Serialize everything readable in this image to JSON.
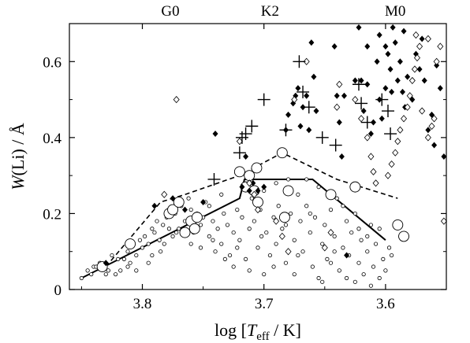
{
  "chart_data": {
    "type": "scatter",
    "title": "",
    "xlabel_parts": {
      "pre": "log [",
      "main": "T",
      "sub": "eff",
      "post": " / K]"
    },
    "ylabel_parts": {
      "main": "W",
      "post": "(Li) / Å"
    },
    "xlim": [
      3.86,
      3.55
    ],
    "ylim": [
      0,
      0.7
    ],
    "x_ticks": [
      3.8,
      3.7,
      3.6
    ],
    "x_tick_labels": [
      "3.8",
      "3.7",
      "3.6"
    ],
    "y_ticks": [
      0,
      0.2,
      0.4,
      0.6
    ],
    "y_tick_labels": [
      "0",
      "0.2",
      "0.4",
      "0.6"
    ],
    "top_axis": [
      {
        "label": "G0",
        "x": 3.777
      },
      {
        "label": "K2",
        "x": 3.695
      },
      {
        "label": "M0",
        "x": 3.592
      }
    ],
    "grid": false,
    "legend": "none",
    "series": [
      {
        "marker": "small-open-circle",
        "points": [
          [
            3.85,
            0.03
          ],
          [
            3.845,
            0.05
          ],
          [
            3.84,
            0.06
          ],
          [
            3.835,
            0.07
          ],
          [
            3.83,
            0.07
          ],
          [
            3.828,
            0.05
          ],
          [
            3.825,
            0.09
          ],
          [
            3.822,
            0.04
          ],
          [
            3.818,
            0.05
          ],
          [
            3.815,
            0.08
          ],
          [
            3.812,
            0.1
          ],
          [
            3.81,
            0.07
          ],
          [
            3.808,
            0.12
          ],
          [
            3.805,
            0.09
          ],
          [
            3.8,
            0.11
          ],
          [
            3.798,
            0.14
          ],
          [
            3.795,
            0.12
          ],
          [
            3.792,
            0.16
          ],
          [
            3.79,
            0.15
          ],
          [
            3.788,
            0.18
          ],
          [
            3.786,
            0.13
          ],
          [
            3.783,
            0.17
          ],
          [
            3.78,
            0.19
          ],
          [
            3.778,
            0.16
          ],
          [
            3.776,
            0.21
          ],
          [
            3.773,
            0.2
          ],
          [
            3.77,
            0.16
          ],
          [
            3.768,
            0.22
          ],
          [
            3.765,
            0.18
          ],
          [
            3.762,
            0.24
          ],
          [
            3.76,
            0.21
          ],
          [
            3.758,
            0.15
          ],
          [
            3.755,
            0.2
          ],
          [
            3.752,
            0.17
          ],
          [
            3.75,
            0.19
          ],
          [
            3.748,
            0.23
          ],
          [
            3.745,
            0.14
          ],
          [
            3.742,
            0.18
          ],
          [
            3.74,
            0.1
          ],
          [
            3.738,
            0.16
          ],
          [
            3.735,
            0.12
          ],
          [
            3.733,
            0.2
          ],
          [
            3.73,
            0.17
          ],
          [
            3.728,
            0.09
          ],
          [
            3.725,
            0.15
          ],
          [
            3.722,
            0.21
          ],
          [
            3.72,
            0.13
          ],
          [
            3.718,
            0.19
          ],
          [
            3.715,
            0.08
          ],
          [
            3.712,
            0.16
          ],
          [
            3.71,
            0.24
          ],
          [
            3.708,
            0.18
          ],
          [
            3.705,
            0.11
          ],
          [
            3.703,
            0.21
          ],
          [
            3.7,
            0.26
          ],
          [
            3.698,
            0.15
          ],
          [
            3.695,
            0.09
          ],
          [
            3.692,
            0.19
          ],
          [
            3.69,
            0.12
          ],
          [
            3.688,
            0.22
          ],
          [
            3.685,
            0.16
          ],
          [
            3.682,
            0.07
          ],
          [
            3.68,
            0.29
          ],
          [
            3.678,
            0.2
          ],
          [
            3.675,
            0.13
          ],
          [
            3.672,
            0.25
          ],
          [
            3.67,
            0.18
          ],
          [
            3.668,
            0.1
          ],
          [
            3.665,
            0.22
          ],
          [
            3.662,
            0.15
          ],
          [
            3.66,
            0.06
          ],
          [
            3.658,
            0.19
          ],
          [
            3.655,
            0.27
          ],
          [
            3.652,
            0.12
          ],
          [
            3.65,
            0.17
          ],
          [
            3.648,
            0.08
          ],
          [
            3.645,
            0.21
          ],
          [
            3.642,
            0.14
          ],
          [
            3.64,
            0.24
          ],
          [
            3.638,
            0.05
          ],
          [
            3.635,
            0.11
          ],
          [
            3.632,
            0.18
          ],
          [
            3.63,
            0.09
          ],
          [
            3.628,
            0.15
          ],
          [
            3.625,
            0.2
          ],
          [
            3.622,
            0.07
          ],
          [
            3.62,
            0.13
          ],
          [
            3.618,
            0.04
          ],
          [
            3.615,
            0.1
          ],
          [
            3.612,
            0.17
          ],
          [
            3.61,
            0.06
          ],
          [
            3.608,
            0.12
          ],
          [
            3.605,
            0.03
          ],
          [
            3.602,
            0.08
          ],
          [
            3.6,
            0.05
          ],
          [
            3.597,
            0.11
          ],
          [
            3.775,
            0.14
          ],
          [
            3.785,
            0.1
          ],
          [
            3.795,
            0.07
          ],
          [
            3.805,
            0.05
          ],
          [
            3.76,
            0.12
          ],
          [
            3.745,
            0.22
          ],
          [
            3.735,
            0.25
          ],
          [
            3.725,
            0.06
          ],
          [
            3.715,
            0.27
          ],
          [
            3.7,
            0.04
          ],
          [
            3.69,
            0.28
          ],
          [
            3.675,
            0.04
          ],
          [
            3.665,
            0.29
          ],
          [
            3.655,
            0.03
          ],
          [
            3.645,
            0.07
          ],
          [
            3.635,
            0.22
          ],
          [
            3.625,
            0.02
          ],
          [
            3.615,
            0.14
          ],
          [
            3.605,
            0.16
          ],
          [
            3.595,
            0.09
          ],
          [
            3.812,
            0.06
          ],
          [
            3.802,
            0.13
          ],
          [
            3.792,
            0.09
          ],
          [
            3.782,
            0.12
          ],
          [
            3.772,
            0.15
          ],
          [
            3.762,
            0.18
          ],
          [
            3.752,
            0.11
          ],
          [
            3.742,
            0.13
          ],
          [
            3.732,
            0.08
          ],
          [
            3.722,
            0.11
          ],
          [
            3.712,
            0.05
          ],
          [
            3.702,
            0.14
          ],
          [
            3.692,
            0.06
          ],
          [
            3.682,
            0.17
          ],
          [
            3.672,
            0.09
          ],
          [
            3.662,
            0.2
          ],
          [
            3.652,
            0.02
          ],
          [
            3.642,
            0.1
          ],
          [
            3.632,
            0.03
          ],
          [
            3.622,
            0.16
          ],
          [
            3.612,
            0.01
          ],
          [
            3.82,
            0.08
          ],
          [
            3.83,
            0.04
          ],
          [
            3.838,
            0.06
          ],
          [
            3.842,
            0.04
          ]
        ]
      },
      {
        "marker": "large-open-circle",
        "points": [
          [
            3.833,
            0.06
          ],
          [
            3.81,
            0.12
          ],
          [
            3.778,
            0.2
          ],
          [
            3.775,
            0.21
          ],
          [
            3.77,
            0.23
          ],
          [
            3.765,
            0.15
          ],
          [
            3.76,
            0.18
          ],
          [
            3.757,
            0.16
          ],
          [
            3.755,
            0.19
          ],
          [
            3.72,
            0.31
          ],
          [
            3.715,
            0.27
          ],
          [
            3.712,
            0.3
          ],
          [
            3.708,
            0.26
          ],
          [
            3.706,
            0.32
          ],
          [
            3.705,
            0.23
          ],
          [
            3.685,
            0.36
          ],
          [
            3.683,
            0.19
          ],
          [
            3.68,
            0.26
          ],
          [
            3.645,
            0.25
          ],
          [
            3.625,
            0.27
          ],
          [
            3.59,
            0.17
          ],
          [
            3.585,
            0.14
          ]
        ]
      },
      {
        "marker": "filled-diamond",
        "points": [
          [
            3.83,
            0.07
          ],
          [
            3.79,
            0.22
          ],
          [
            3.775,
            0.24
          ],
          [
            3.765,
            0.21
          ],
          [
            3.75,
            0.23
          ],
          [
            3.74,
            0.41
          ],
          [
            3.718,
            0.27
          ],
          [
            3.715,
            0.35
          ],
          [
            3.712,
            0.26
          ],
          [
            3.709,
            0.28
          ],
          [
            3.705,
            0.26
          ],
          [
            3.7,
            0.27
          ],
          [
            3.682,
            0.42
          ],
          [
            3.68,
            0.46
          ],
          [
            3.676,
            0.49
          ],
          [
            3.674,
            0.51
          ],
          [
            3.672,
            0.53
          ],
          [
            3.67,
            0.43
          ],
          [
            3.668,
            0.48
          ],
          [
            3.665,
            0.51
          ],
          [
            3.663,
            0.42
          ],
          [
            3.661,
            0.65
          ],
          [
            3.659,
            0.56
          ],
          [
            3.657,
            0.47
          ],
          [
            3.642,
            0.64
          ],
          [
            3.64,
            0.51
          ],
          [
            3.638,
            0.44
          ],
          [
            3.636,
            0.35
          ],
          [
            3.634,
            0.51
          ],
          [
            3.632,
            0.09
          ],
          [
            3.622,
            0.69
          ],
          [
            3.62,
            0.55
          ],
          [
            3.618,
            0.47
          ],
          [
            3.615,
            0.54
          ],
          [
            3.612,
            0.41
          ],
          [
            3.61,
            0.44
          ],
          [
            3.607,
            0.6
          ],
          [
            3.605,
            0.5
          ],
          [
            3.603,
            0.45
          ],
          [
            3.6,
            0.53
          ],
          [
            3.598,
            0.62
          ],
          [
            3.596,
            0.58
          ],
          [
            3.594,
            0.69
          ],
          [
            3.592,
            0.65
          ],
          [
            3.59,
            0.55
          ],
          [
            3.588,
            0.6
          ],
          [
            3.586,
            0.52
          ],
          [
            3.584,
            0.48
          ],
          [
            3.582,
            0.56
          ],
          [
            3.578,
            0.5
          ],
          [
            3.575,
            0.62
          ],
          [
            3.572,
            0.58
          ],
          [
            3.568,
            0.55
          ],
          [
            3.565,
            0.42
          ],
          [
            3.562,
            0.46
          ],
          [
            3.558,
            0.59
          ],
          [
            3.555,
            0.53
          ],
          [
            3.552,
            0.35
          ],
          [
            3.595,
            0.52
          ],
          [
            3.615,
            0.64
          ],
          [
            3.625,
            0.55
          ],
          [
            3.6,
            0.64
          ],
          [
            3.605,
            0.67
          ],
          [
            3.585,
            0.68
          ],
          [
            3.56,
            0.38
          ],
          [
            3.57,
            0.66
          ]
        ]
      },
      {
        "marker": "open-diamond",
        "points": [
          [
            3.782,
            0.25
          ],
          [
            3.772,
            0.5
          ],
          [
            3.72,
            0.39
          ],
          [
            3.712,
            0.28
          ],
          [
            3.708,
            0.25
          ],
          [
            3.705,
            0.21
          ],
          [
            3.69,
            0.18
          ],
          [
            3.685,
            0.14
          ],
          [
            3.68,
            0.1
          ],
          [
            3.675,
            0.5
          ],
          [
            3.665,
            0.6
          ],
          [
            3.65,
            0.11
          ],
          [
            3.645,
            0.15
          ],
          [
            3.64,
            0.48
          ],
          [
            3.638,
            0.54
          ],
          [
            3.625,
            0.5
          ],
          [
            3.62,
            0.45
          ],
          [
            3.615,
            0.4
          ],
          [
            3.612,
            0.35
          ],
          [
            3.598,
            0.3
          ],
          [
            3.595,
            0.33
          ],
          [
            3.592,
            0.36
          ],
          [
            3.59,
            0.39
          ],
          [
            3.588,
            0.42
          ],
          [
            3.585,
            0.45
          ],
          [
            3.582,
            0.48
          ],
          [
            3.58,
            0.51
          ],
          [
            3.578,
            0.55
          ],
          [
            3.576,
            0.58
          ],
          [
            3.574,
            0.61
          ],
          [
            3.572,
            0.64
          ],
          [
            3.565,
            0.4
          ],
          [
            3.562,
            0.43
          ],
          [
            3.56,
            0.45
          ],
          [
            3.558,
            0.6
          ],
          [
            3.555,
            0.64
          ],
          [
            3.552,
            0.18
          ],
          [
            3.575,
            0.67
          ],
          [
            3.565,
            0.66
          ],
          [
            3.57,
            0.47
          ],
          [
            3.61,
            0.31
          ],
          [
            3.608,
            0.28
          ]
        ]
      },
      {
        "marker": "plus",
        "points": [
          [
            3.741,
            0.29
          ],
          [
            3.72,
            0.36
          ],
          [
            3.718,
            0.4
          ],
          [
            3.715,
            0.41
          ],
          [
            3.71,
            0.43
          ],
          [
            3.7,
            0.5
          ],
          [
            3.682,
            0.42
          ],
          [
            3.671,
            0.6
          ],
          [
            3.668,
            0.52
          ],
          [
            3.663,
            0.48
          ],
          [
            3.652,
            0.4
          ],
          [
            3.641,
            0.38
          ],
          [
            3.622,
            0.54
          ],
          [
            3.62,
            0.49
          ],
          [
            3.615,
            0.44
          ],
          [
            3.603,
            0.5
          ],
          [
            3.598,
            0.47
          ],
          [
            3.596,
            0.41
          ]
        ]
      }
    ],
    "lines": [
      {
        "style": "solid",
        "points": [
          [
            3.85,
            0.03
          ],
          [
            3.72,
            0.24
          ],
          [
            3.716,
            0.29
          ],
          [
            3.68,
            0.29
          ],
          [
            3.66,
            0.29
          ],
          [
            3.6,
            0.13
          ]
        ]
      },
      {
        "style": "dashed",
        "points": [
          [
            3.83,
            0.06
          ],
          [
            3.785,
            0.23
          ],
          [
            3.765,
            0.25
          ],
          [
            3.72,
            0.3
          ],
          [
            3.685,
            0.36
          ],
          [
            3.64,
            0.29
          ],
          [
            3.59,
            0.24
          ]
        ]
      }
    ]
  }
}
